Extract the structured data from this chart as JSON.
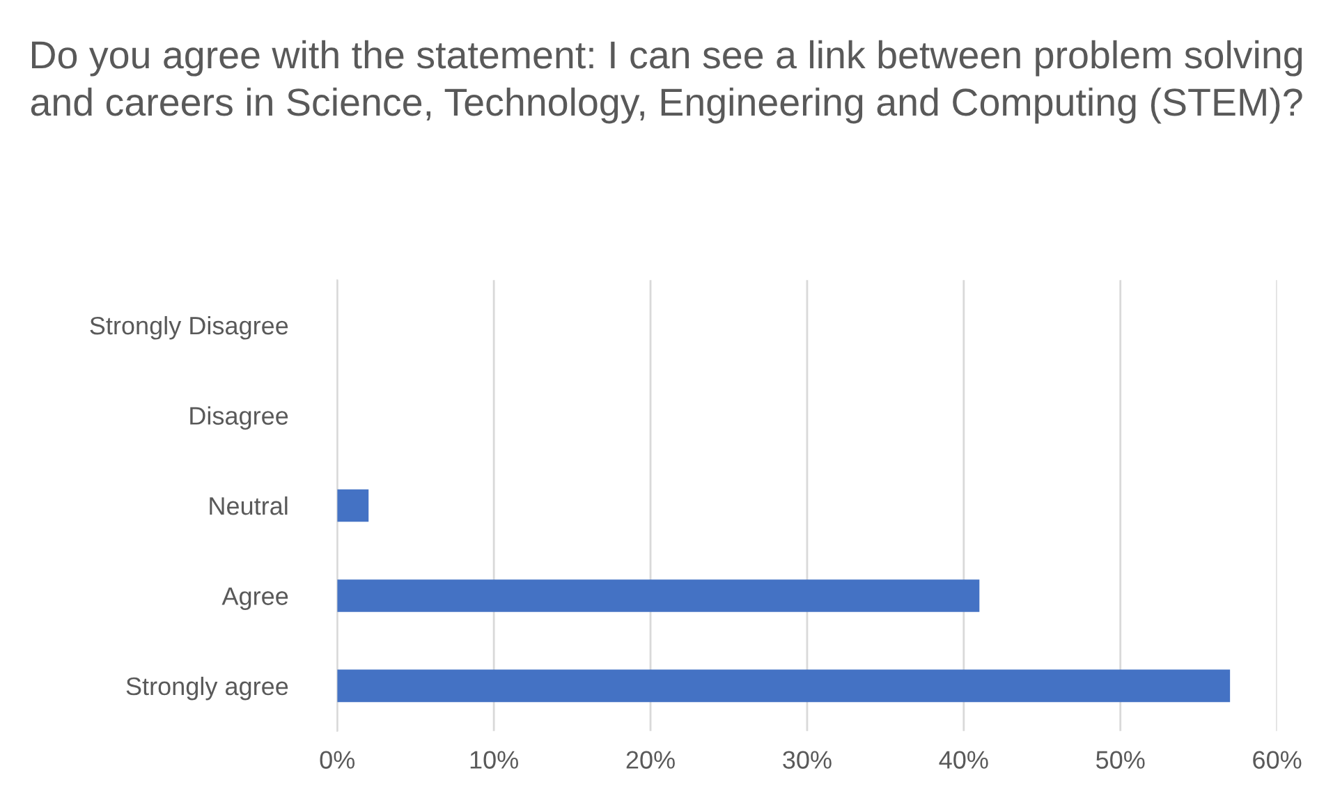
{
  "chart_data": {
    "type": "bar",
    "orientation": "horizontal",
    "title": "Do you agree with the statement: I can see a link between problem solving and careers in Science, Technology, Engineering and Computing (STEM)?",
    "categories": [
      "Strongly Disagree",
      "Disagree",
      "Neutral",
      "Agree",
      "Strongly agree"
    ],
    "values": [
      0,
      0,
      2,
      41,
      57
    ],
    "color": "#4472c4",
    "xlim": [
      0,
      60
    ],
    "xticks": [
      {
        "value": 0,
        "label": "0%"
      },
      {
        "value": 10,
        "label": "10%"
      },
      {
        "value": 20,
        "label": "20%"
      },
      {
        "value": 30,
        "label": "30%"
      },
      {
        "value": 40,
        "label": "40%"
      },
      {
        "value": 50,
        "label": "50%"
      },
      {
        "value": 60,
        "label": "60%"
      }
    ],
    "grid": "x",
    "legend": false
  }
}
